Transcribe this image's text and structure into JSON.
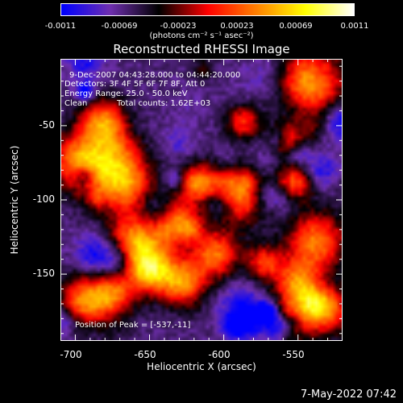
{
  "chart_data": {
    "type": "heatmap",
    "title": "Reconstructed RHESSI Image",
    "xlabel": "Heliocentric X (arcsec)",
    "ylabel": "Heliocentric Y (arcsec)",
    "xlim": [
      -710,
      -520
    ],
    "ylim": [
      -195,
      -5
    ],
    "x_ticks": [
      "-700",
      "-650",
      "-600",
      "-550"
    ],
    "x_tick_values": [
      -700,
      -650,
      -600,
      -550
    ],
    "y_ticks": [
      "-50",
      "-100",
      "-150"
    ],
    "y_tick_values": [
      -50,
      -100,
      -150
    ],
    "colorbar": {
      "min": -0.0011,
      "max": 0.0011,
      "tick_labels": [
        "-0.0011",
        "-0.00069",
        "-0.00023",
        "0.00023",
        "0.00069",
        "0.0011"
      ],
      "tick_values": [
        -0.0011,
        -0.00069,
        -0.00023,
        0.00023,
        0.00069,
        0.0011
      ],
      "unit": "(photons cm⁻² s⁻¹ asec⁻²)",
      "colors": [
        "#0000ff",
        "#7030b0",
        "#000000",
        "#ff0000",
        "#ff8000",
        "#ffff00",
        "#ffffff"
      ]
    },
    "annotations": {
      "time_range": "9-Dec-2007 04:43:28.000 to 04:44:20.000",
      "detectors": "Detectors: 3F 4F 5F 6F 7F 8F, Att 0",
      "energy": "Energy Range: 25.0 - 50.0 keV",
      "clean": "Clean",
      "counts": "Total counts: 1.62E+03",
      "peak": "Position of Peak = [-537,-11]"
    },
    "grid": false
  },
  "footer": {
    "date_stamp": "7-May-2022 07:42"
  }
}
